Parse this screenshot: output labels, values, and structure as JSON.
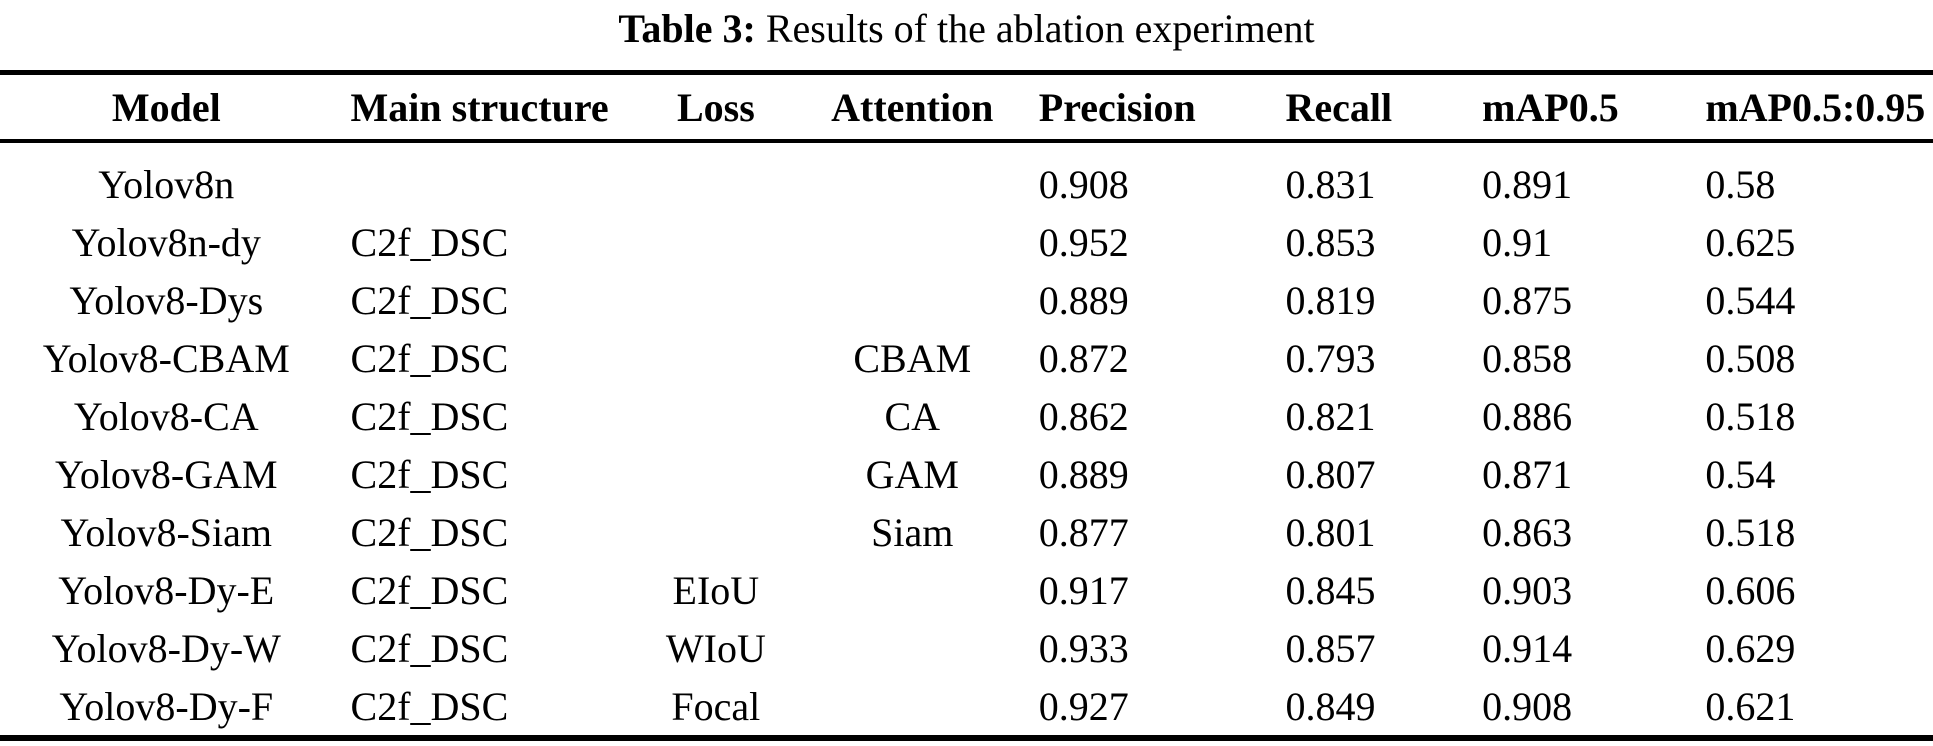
{
  "caption": {
    "label": "Table 3:",
    "text": "Results of the ablation experiment"
  },
  "chart_data": {
    "type": "table",
    "title": "Table 3: Results of the ablation experiment",
    "columns": [
      "Model",
      "Main structure",
      "Loss",
      "Attention",
      "Precision",
      "Recall",
      "mAP0.5",
      "mAP0.5:0.95"
    ],
    "rows": [
      [
        "Yolov8n",
        "",
        "",
        "",
        "0.908",
        "0.831",
        "0.891",
        "0.58"
      ],
      [
        "Yolov8n-dy",
        "C2f_DSC",
        "",
        "",
        "0.952",
        "0.853",
        "0.91",
        "0.625"
      ],
      [
        "Yolov8-Dys",
        "C2f_DSC",
        "",
        "",
        "0.889",
        "0.819",
        "0.875",
        "0.544"
      ],
      [
        "Yolov8-CBAM",
        "C2f_DSC",
        "",
        "CBAM",
        "0.872",
        "0.793",
        "0.858",
        "0.508"
      ],
      [
        "Yolov8-CA",
        "C2f_DSC",
        "",
        "CA",
        "0.862",
        "0.821",
        "0.886",
        "0.518"
      ],
      [
        "Yolov8-GAM",
        "C2f_DSC",
        "",
        "GAM",
        "0.889",
        "0.807",
        "0.871",
        "0.54"
      ],
      [
        "Yolov8-Siam",
        "C2f_DSC",
        "",
        "Siam",
        "0.877",
        "0.801",
        "0.863",
        "0.518"
      ],
      [
        "Yolov8-Dy-E",
        "C2f_DSC",
        "EIoU",
        "",
        "0.917",
        "0.845",
        "0.903",
        "0.606"
      ],
      [
        "Yolov8-Dy-W",
        "C2f_DSC",
        "WIoU",
        "",
        "0.933",
        "0.857",
        "0.914",
        "0.629"
      ],
      [
        "Yolov8-Dy-F",
        "C2f_DSC",
        "Focal",
        "",
        "0.927",
        "0.849",
        "0.908",
        "0.621"
      ]
    ]
  }
}
